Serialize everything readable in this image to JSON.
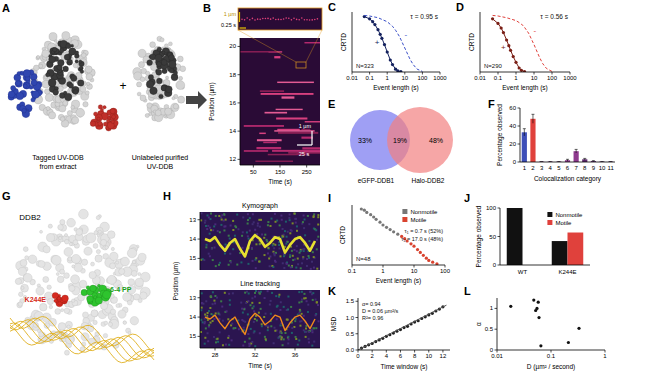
{
  "panel_labels": [
    "A",
    "B",
    "C",
    "D",
    "E",
    "F",
    "G",
    "H",
    "I",
    "J",
    "K",
    "L"
  ],
  "structures": {
    "a_left_caption": [
      "Tagged UV-DDB",
      "from extract"
    ],
    "a_plus": "+",
    "a_right_caption": [
      "Unlabeled purified",
      "UV-DDB"
    ],
    "g_title": "DDB2",
    "g_mutation": "K244E",
    "g_lesion": "6-4 PP"
  },
  "venn": {
    "left_label": "eGFP-DDB1",
    "right_label": "Halo-DDB2",
    "left_only": "33%",
    "overlap": "19%",
    "right_only": "48%"
  },
  "chart_data": [
    {
      "type": "image",
      "xlabel": "Time (s)",
      "ylabel": "Position (µm)",
      "xlim": [
        0,
        300
      ],
      "xticks": [
        50,
        150,
        250
      ],
      "ylim": [
        11.6,
        20.6
      ],
      "yticks": [
        12,
        14,
        16,
        18,
        20
      ],
      "annotations": [
        "1 µm",
        "0.25 s",
        "1 µm",
        "25 s"
      ]
    },
    {
      "type": "line",
      "xlabel": "Event length (s)",
      "ylabel": "CRTD",
      "log": "x",
      "xlim": [
        0.01,
        1000
      ],
      "xticks": [
        0.01,
        0.1,
        1,
        10,
        100,
        1000
      ],
      "ylim": [
        0,
        1.05
      ],
      "tick_labels": "x",
      "annotations": [
        "τ = 0.95 s",
        "N=323"
      ],
      "series": [
        {
          "name": "+",
          "color": "#14215e",
          "marker": "circle",
          "x": [
            0.05,
            0.1,
            0.15,
            0.2,
            0.3,
            0.4,
            0.5,
            0.7,
            1,
            1.5,
            2,
            3,
            4,
            6
          ],
          "values": [
            0.97,
            0.93,
            0.88,
            0.83,
            0.74,
            0.66,
            0.59,
            0.48,
            0.35,
            0.21,
            0.13,
            0.05,
            0.02,
            0.005
          ]
        },
        {
          "name": "-",
          "color": "#3a4fc8",
          "line_style": "dashed",
          "x": [
            0.05,
            0.1,
            0.3,
            1,
            2,
            3,
            5,
            10,
            20,
            30,
            50,
            100
          ],
          "values": [
            0.99,
            0.98,
            0.95,
            0.88,
            0.8,
            0.73,
            0.62,
            0.42,
            0.22,
            0.13,
            0.05,
            0.01
          ]
        }
      ]
    },
    {
      "type": "line",
      "xlabel": "Event length (s)",
      "ylabel": "CRTD",
      "log": "x",
      "xlim": [
        0.01,
        1000
      ],
      "xticks": [
        0.01,
        0.1,
        1,
        10,
        100,
        1000
      ],
      "ylim": [
        0,
        1.05
      ],
      "tick_labels": "x",
      "annotations": [
        "τ = 0.56 s",
        "N=290"
      ],
      "series": [
        {
          "name": "+",
          "color": "#7a1f16",
          "marker": "circle",
          "x": [
            0.05,
            0.1,
            0.15,
            0.2,
            0.3,
            0.4,
            0.5,
            0.7,
            1,
            1.5,
            2,
            3
          ],
          "values": [
            0.93,
            0.85,
            0.77,
            0.69,
            0.56,
            0.46,
            0.38,
            0.27,
            0.17,
            0.07,
            0.03,
            0.005
          ]
        },
        {
          "name": "-",
          "color": "#e0413c",
          "line_style": "dashed",
          "x": [
            0.05,
            0.1,
            0.3,
            1,
            2,
            3,
            5,
            10,
            20,
            30,
            50,
            100
          ],
          "values": [
            0.99,
            0.98,
            0.95,
            0.9,
            0.84,
            0.78,
            0.68,
            0.48,
            0.26,
            0.15,
            0.06,
            0.01
          ]
        }
      ]
    },
    {
      "type": "bar",
      "xlabel": "Colocalization category",
      "ylabel": "Percentage observed",
      "categories": [
        "1",
        "2",
        "3",
        "4",
        "5",
        "6",
        "7",
        "8",
        "9",
        "10",
        "11"
      ],
      "values": [
        33,
        48,
        0.5,
        0.5,
        0.5,
        2,
        12,
        3,
        1,
        0.5,
        0.5
      ],
      "errors": [
        4,
        5,
        0,
        0,
        0,
        1,
        2,
        1,
        0.5,
        0,
        0
      ],
      "colors": [
        "#3d4fb8",
        "#e0413c",
        "#8e3a8e",
        "#8e3a8e",
        "#8e3a8e",
        "#8e3a8e",
        "#8e3a8e",
        "#5e2a6e",
        "#5e2a6e",
        "#5e2a6e",
        "#5e2a6e"
      ],
      "ylim": [
        0,
        60
      ],
      "yticks": [
        0,
        20,
        40,
        60
      ]
    },
    {
      "type": "image",
      "title": "Kymograph",
      "ylabel": "Position (µm)",
      "xlim": [
        26.5,
        38.5
      ],
      "ylim": [
        15.6,
        12.6
      ],
      "yticks": [
        13,
        14,
        15
      ],
      "tick_labels": "y",
      "series": [
        {
          "color": "#e8e030",
          "x": [
            27,
            27.5,
            28,
            28.5,
            29,
            29.5,
            30,
            30.5,
            31,
            31.5,
            32,
            32.5,
            33,
            33.5,
            34,
            34.5,
            35,
            35.5,
            36,
            36.5,
            37,
            37.5,
            38
          ],
          "values": [
            14.0,
            14.1,
            13.9,
            14.3,
            14.6,
            14.2,
            14.0,
            14.5,
            14.9,
            14.1,
            13.8,
            14.0,
            14.4,
            14.2,
            13.9,
            14.0,
            14.7,
            14.3,
            14.0,
            13.9,
            14.2,
            14.6,
            14.1
          ]
        }
      ]
    },
    {
      "type": "image",
      "title": "Line tracking",
      "xlabel": "Time (s)",
      "xlim": [
        26.5,
        38.5
      ],
      "xticks": [
        28,
        32,
        36
      ],
      "ylim": [
        15.6,
        12.6
      ],
      "yticks": [
        13,
        14,
        15
      ],
      "series": [
        {
          "color": "#f08a1c",
          "x": [
            27,
            27.5,
            28,
            28.5,
            29,
            29.5,
            30,
            30.5,
            31,
            31.5,
            32,
            32.5,
            33,
            33.5,
            34,
            34.5,
            35,
            35.5,
            36,
            36.5,
            37,
            37.5,
            38
          ],
          "values": [
            14.0,
            14.1,
            13.9,
            14.3,
            14.6,
            14.2,
            14.0,
            14.5,
            14.9,
            14.1,
            13.8,
            14.0,
            14.4,
            14.2,
            13.9,
            14.0,
            14.7,
            14.3,
            14.0,
            13.9,
            14.2,
            14.6,
            14.1
          ]
        }
      ]
    },
    {
      "type": "scatter",
      "xlabel": "Event length (s)",
      "ylabel": "CRTD",
      "log": "x",
      "xlim": [
        0.1,
        100
      ],
      "xticks": [
        0.1,
        1,
        10,
        100
      ],
      "ylim": [
        0,
        1.05
      ],
      "tick_labels": "x",
      "legend": "upper right",
      "annotations": [
        "N=48",
        "τ₁ = 0.7 s (52%)",
        "τ₂ = 17.0 s (48%)"
      ],
      "series": [
        {
          "name": "Nonmotile",
          "color": "#777777",
          "x": [
            0.2,
            0.25,
            0.3,
            0.4,
            0.5,
            0.6,
            0.8,
            1,
            1.3,
            1.7,
            2.2,
            3
          ],
          "values": [
            0.98,
            0.96,
            0.92,
            0.88,
            0.84,
            0.8,
            0.75,
            0.7,
            0.66,
            0.62,
            0.58,
            0.54
          ]
        },
        {
          "name": "Motile",
          "color": "#d9432f",
          "x": [
            4,
            5,
            6,
            8,
            10,
            13,
            16,
            20,
            25,
            30,
            40,
            55
          ],
          "values": [
            0.5,
            0.46,
            0.42,
            0.37,
            0.33,
            0.27,
            0.22,
            0.17,
            0.12,
            0.08,
            0.05,
            0.02
          ]
        }
      ]
    },
    {
      "type": "bar",
      "ylabel": "Percentage observed",
      "categories": [
        "WT",
        "K244E"
      ],
      "ylim": [
        0,
        100
      ],
      "yticks": [
        0,
        50,
        100
      ],
      "legend": "upper right",
      "series": [
        {
          "name": "Nonmotile",
          "color": "#111111",
          "values": [
            100,
            42
          ]
        },
        {
          "name": "Motile",
          "color": "#e0413c",
          "values": [
            null,
            57
          ]
        }
      ]
    },
    {
      "type": "line",
      "xlabel": "Time window (s)",
      "ylabel": "MSD",
      "xlim": [
        0,
        13
      ],
      "xticks": [
        0,
        2,
        4,
        6,
        8,
        10,
        12
      ],
      "ylim": [
        0,
        1.6
      ],
      "yticks": [
        {
          "value": 0,
          "label": "0.0"
        },
        0.5,
        {
          "value": 1,
          "label": "1.0"
        },
        1.5
      ],
      "annotations": [
        "α= 0.94",
        "D = 0.06 µm²/s",
        "R²= 0.96"
      ],
      "series": [
        {
          "type": "scatter",
          "marker": "circle",
          "color": "#222222",
          "x": [
            0.5,
            1,
            1.5,
            2,
            2.5,
            3,
            3.5,
            4,
            4.5,
            5,
            5.5,
            6,
            6.5,
            7,
            7.5,
            8,
            8.5,
            9,
            9.5,
            10,
            10.5,
            11,
            11.5,
            12
          ],
          "values": [
            0.06,
            0.11,
            0.16,
            0.2,
            0.26,
            0.31,
            0.36,
            0.42,
            0.47,
            0.52,
            0.58,
            0.63,
            0.69,
            0.73,
            0.8,
            0.86,
            0.9,
            0.97,
            1.02,
            1.08,
            1.13,
            1.2,
            1.26,
            1.33
          ]
        },
        {
          "type": "line",
          "color": "#555555",
          "x": [
            0,
            12.5
          ],
          "values": [
            0,
            1.38
          ]
        }
      ]
    },
    {
      "type": "scatter",
      "xlabel": "D (µm² / second)",
      "ylabel": "α",
      "log": "x",
      "xlim": [
        0.01,
        1
      ],
      "xticks": [
        0.01,
        0.1,
        1
      ],
      "ylim": [
        0,
        1.25
      ],
      "yticks": [
        0,
        0.5,
        1
      ],
      "series": [
        {
          "color": "#111111",
          "x": [
            0.018,
            0.048,
            0.052,
            0.055,
            0.06,
            0.058,
            0.065,
            0.21,
            0.33
          ],
          "values": [
            1.05,
            1.2,
            0.95,
            1.0,
            0.78,
            1.15,
            0.1,
            0.18,
            0.52
          ]
        }
      ]
    }
  ]
}
